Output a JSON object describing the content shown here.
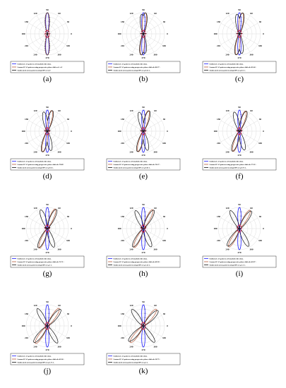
{
  "chart_data": {
    "type": "polar-line",
    "angle_labels": [
      "90",
      "60",
      "30",
      "0",
      "330",
      "300",
      "270",
      "240",
      "210",
      "180",
      "150",
      "120"
    ],
    "radial_labels": [
      "0.2",
      "0.4",
      "0.6",
      "0.8",
      "1"
    ],
    "series_colors": {
      "uniform": "#1a1aff",
      "scanned": "#b85a3a",
      "synthesized": "#111111",
      "markers": "#cc0033"
    },
    "panels": [
      {
        "label": "(a)",
        "steer_angle_deg": 0,
        "legend": [
          "Uniform LAA pattern at broadside direction.",
          "Scanned LAA pattern using progressive phase shift α=0, =0°",
          "Synthesized array pattern using EPP at Δ=0"
        ]
      },
      {
        "label": "(b)",
        "steer_angle_deg": 5,
        "legend": [
          "Uniform LAA pattern at broadside direction.",
          "Scanned LAA pattern using progressive phase shift α0=80.57°.",
          "Synthesized array pattern using EPP at η=0.25 λ."
        ]
      },
      {
        "label": "(c)",
        "steer_angle_deg": 8,
        "legend": [
          "Uniform LAA pattern at broadside direction.",
          "Scanned LAA pattern using progressive phase shift α0=81.64°.",
          "Synthesized array pattern using EPP at η=0.5 λ."
        ]
      },
      {
        "label": "(d)",
        "steer_angle_deg": 12,
        "legend": [
          "Uniform LAA pattern at broadside direction.",
          "Scanned LAA pattern using progressive phase shift α0=79.89°",
          "Synthesized array pattern using EPP at η=0.6 λ."
        ]
      },
      {
        "label": "(e)",
        "steer_angle_deg": 14,
        "legend": [
          "Uniform LAA pattern at broadside direction.",
          "Scanned LAA pattern using progressive phase shift α0=78.17°.",
          "Synthesized array pattern using EPP at η=0.65 λ."
        ]
      },
      {
        "label": "(f)",
        "steer_angle_deg": 17,
        "legend": [
          "Uniform LAA pattern at broadside direction.",
          "Scanned LAA pattern using progressive phase shift α0=77.22°.",
          "Synthesized array pattern using EPP at η=0.75 λ."
        ]
      },
      {
        "label": "(g)",
        "steer_angle_deg": 22,
        "legend": [
          "Uniform LAA pattern at broadside direction.",
          "Scanned LAA pattern using progressive phase shift α0=73.71°.",
          "Synthesized array pattern using EPP at η=1 λ."
        ]
      },
      {
        "label": "(h)",
        "steer_angle_deg": 26,
        "legend": [
          "Uniform LAA pattern at broadside direction.",
          "Scanned LAA pattern using progressive phase shift α0=69.58°.",
          "Synthesized array pattern using EPP at η=1.25 λ."
        ]
      },
      {
        "label": "(i)",
        "steer_angle_deg": 30,
        "legend": [
          "Uniform LAA pattern at broadside direction.",
          "Scanned LAA pattern using progressive phase shift α0=63.97°.",
          "Synthesized array pattern using EPP at η=1.5 λ."
        ]
      },
      {
        "label": "(j)",
        "steer_angle_deg": 34,
        "legend": [
          "Uniform LAA pattern at broadside direction.",
          "Scanned LAA pattern using progressive phase shift α0=62.36°.",
          "Synthesized array pattern using EPP at η=1.75 λ."
        ]
      },
      {
        "label": "(k)",
        "steer_angle_deg": 38,
        "legend": [
          "Uniform LAA pattern at broadside direction.",
          "Scanned LAA pattern using progressive phase shift α0=58.75°.",
          "Synthesized array pattern using EPP at η=2 λ."
        ]
      }
    ]
  }
}
